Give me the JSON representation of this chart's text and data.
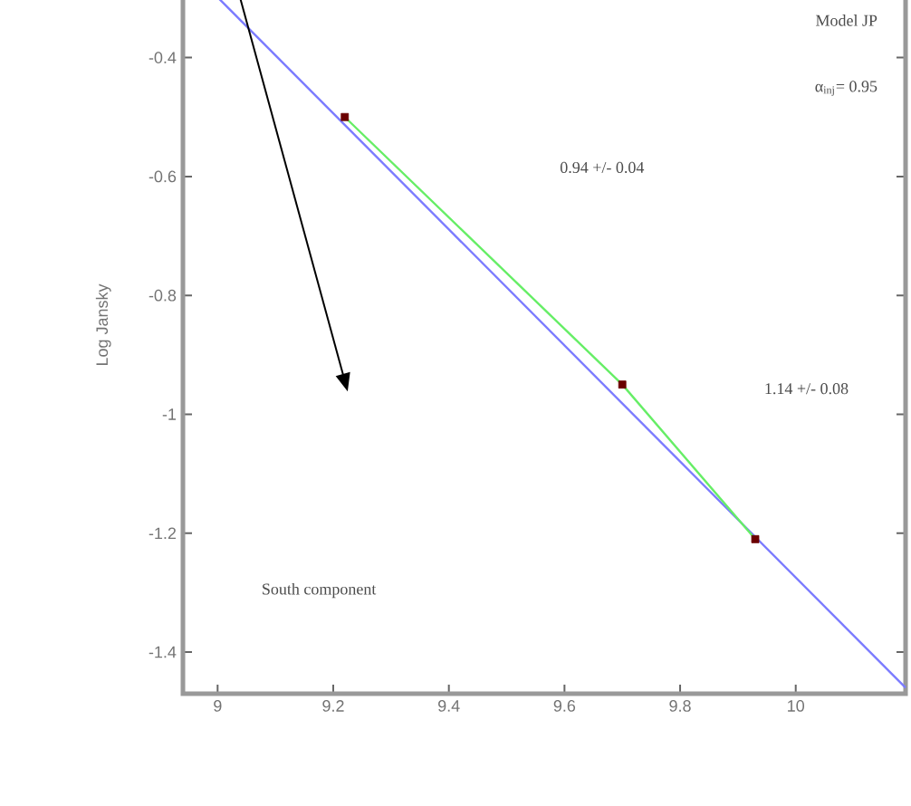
{
  "chart_data": {
    "type": "line",
    "ylabel": "Log Jansky",
    "xlim": [
      8.94,
      10.19
    ],
    "ylim": [
      -1.47,
      -0.23
    ],
    "xticks": [
      9,
      {
        "value": 9.2,
        "label": "9.2"
      },
      {
        "value": 9.4,
        "label": "9.4"
      },
      {
        "value": 9.6,
        "label": "9.6"
      },
      {
        "value": 9.8,
        "label": "9.8"
      },
      10
    ],
    "yticks": [
      {
        "value": -1.4,
        "label": "-1.4"
      },
      {
        "value": -1.2,
        "label": "-1.2"
      },
      -1,
      {
        "value": -0.8,
        "label": "-0.8"
      },
      {
        "value": -0.6,
        "label": "-0.6"
      },
      {
        "value": -0.4,
        "label": "-0.4"
      }
    ],
    "series": [
      {
        "color": "#7b7bff",
        "x": [
          8.94,
          10.19
        ],
        "values": [
          -0.24,
          -1.46
        ],
        "marker": "none"
      },
      {
        "color": "#66ee66",
        "x": [
          9.22,
          9.7,
          9.93
        ],
        "values": [
          -0.5,
          -0.95,
          -1.21
        ],
        "marker": "none"
      },
      {
        "type": "scatter",
        "color": "#6b0000",
        "x": [
          9.22,
          9.7,
          9.93
        ],
        "values": [
          -0.5,
          -0.95,
          -1.21
        ],
        "marker": "square"
      }
    ],
    "annotations": [
      "Model JP",
      "α$_{inj}$= 0.95",
      "0.94 +/- 0.04",
      "1.14 +/- 0.08",
      "South component"
    ],
    "grid": false
  }
}
